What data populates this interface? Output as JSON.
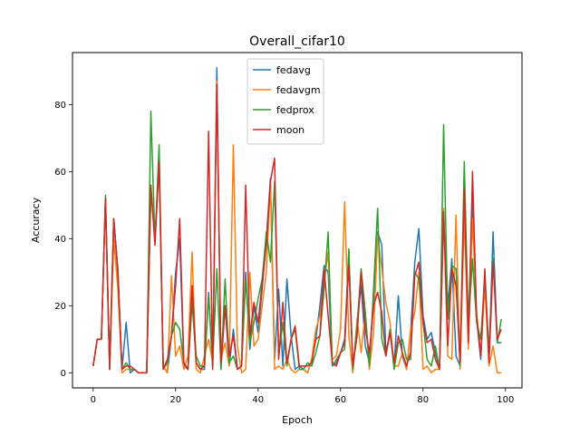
{
  "chart_data": {
    "type": "line",
    "title": "Overall_cifar10",
    "xlabel": "Epoch",
    "ylabel": "Accuracy",
    "xlim": [
      -5,
      104
    ],
    "ylim": [
      -4.5,
      95.5
    ],
    "xticks": [
      0,
      20,
      40,
      60,
      80,
      100
    ],
    "yticks": [
      0,
      20,
      40,
      60,
      80
    ],
    "grid": false,
    "legend_position": "top-center",
    "x": [
      0,
      1,
      2,
      3,
      4,
      5,
      6,
      7,
      8,
      9,
      10,
      11,
      12,
      13,
      14,
      15,
      16,
      17,
      18,
      19,
      20,
      21,
      22,
      23,
      24,
      25,
      26,
      27,
      28,
      29,
      30,
      31,
      32,
      33,
      34,
      35,
      36,
      37,
      38,
      39,
      40,
      41,
      42,
      43,
      44,
      45,
      46,
      47,
      48,
      49,
      50,
      51,
      52,
      53,
      54,
      55,
      56,
      57,
      58,
      59,
      60,
      61,
      62,
      63,
      64,
      65,
      66,
      67,
      68,
      69,
      70,
      71,
      72,
      73,
      74,
      75,
      76,
      77,
      78,
      79,
      80,
      81,
      82,
      83,
      84,
      85,
      86,
      87,
      88,
      89,
      90,
      91,
      92,
      93,
      94,
      95,
      96,
      97,
      98,
      99
    ],
    "series": [
      {
        "name": "fedavg",
        "color": "#1f77b4",
        "values": [
          2,
          10,
          10,
          52,
          1,
          46,
          31,
          1,
          15,
          0,
          1,
          0,
          0,
          0,
          55,
          40,
          62,
          2,
          0,
          11,
          30,
          40,
          2,
          1,
          22,
          3,
          1,
          1,
          24,
          1,
          91,
          1,
          20,
          2,
          13,
          1,
          2,
          30,
          7,
          20,
          12,
          25,
          40,
          58,
          4,
          25,
          2,
          28,
          11,
          1,
          2,
          1,
          0,
          4,
          10,
          20,
          32,
          30,
          2,
          3,
          6,
          10,
          36,
          1,
          15,
          26,
          8,
          3,
          22,
          42,
          38,
          6,
          12,
          2,
          23,
          5,
          1,
          12,
          33,
          43,
          17,
          10,
          12,
          6,
          1,
          47,
          20,
          34,
          5,
          2,
          53,
          13,
          52,
          16,
          4,
          28,
          4,
          42,
          9,
          9
        ]
      },
      {
        "name": "fedavgm",
        "color": "#ff7f0e",
        "values": [
          2,
          10,
          10,
          52,
          1,
          40,
          25,
          0,
          1,
          1,
          1,
          0,
          0,
          0,
          55,
          40,
          62,
          2,
          0,
          29,
          5,
          8,
          1,
          5,
          36,
          1,
          0,
          5,
          10,
          3,
          87,
          4,
          9,
          2,
          68,
          8,
          0,
          1,
          30,
          8,
          10,
          20,
          30,
          57,
          1,
          2,
          1,
          4,
          1,
          0,
          1,
          1,
          0,
          4,
          13,
          17,
          27,
          36,
          4,
          5,
          13,
          51,
          11,
          0,
          16,
          6,
          18,
          1,
          12,
          41,
          31,
          21,
          15,
          2,
          2,
          6,
          1,
          13,
          18,
          30,
          1,
          2,
          0,
          1,
          1,
          49,
          5,
          4,
          47,
          1,
          47,
          7,
          46,
          18,
          6,
          26,
          2,
          8,
          0,
          0
        ]
      },
      {
        "name": "fedprox",
        "color": "#2ca02c",
        "values": [
          2,
          10,
          10,
          53,
          1,
          46,
          30,
          1,
          3,
          1,
          1,
          0,
          0,
          0,
          78,
          39,
          68,
          1,
          3,
          11,
          15,
          13,
          3,
          1,
          21,
          5,
          2,
          2,
          23,
          3,
          31,
          1,
          28,
          3,
          5,
          1,
          2,
          28,
          9,
          15,
          22,
          28,
          42,
          33,
          57,
          5,
          15,
          2,
          10,
          13,
          1,
          1,
          3,
          2,
          6,
          11,
          25,
          42,
          2,
          4,
          6,
          7,
          37,
          1,
          14,
          31,
          18,
          2,
          25,
          49,
          10,
          5,
          13,
          1,
          9,
          10,
          4,
          4,
          30,
          28,
          15,
          4,
          2,
          8,
          1,
          74,
          16,
          32,
          31,
          2,
          63,
          14,
          34,
          15,
          10,
          29,
          6,
          34,
          9,
          16
        ]
      },
      {
        "name": "moon",
        "color": "#d62728",
        "values": [
          2,
          10,
          10,
          52,
          1,
          46,
          30,
          1,
          2,
          2,
          1,
          0,
          0,
          0,
          56,
          38,
          63,
          1,
          4,
          11,
          26,
          46,
          3,
          1,
          26,
          3,
          1,
          2,
          72,
          1,
          86,
          3,
          20,
          5,
          11,
          1,
          2,
          56,
          11,
          21,
          15,
          27,
          38,
          57,
          64,
          4,
          21,
          3,
          10,
          14,
          2,
          2,
          2,
          3,
          10,
          11,
          31,
          17,
          3,
          2,
          6,
          9,
          32,
          2,
          11,
          30,
          13,
          6,
          20,
          24,
          18,
          5,
          12,
          3,
          11,
          6,
          2,
          6,
          29,
          33,
          15,
          9,
          10,
          4,
          1,
          48,
          8,
          31,
          26,
          3,
          55,
          9,
          60,
          17,
          5,
          31,
          3,
          33,
          10,
          13
        ]
      }
    ]
  }
}
